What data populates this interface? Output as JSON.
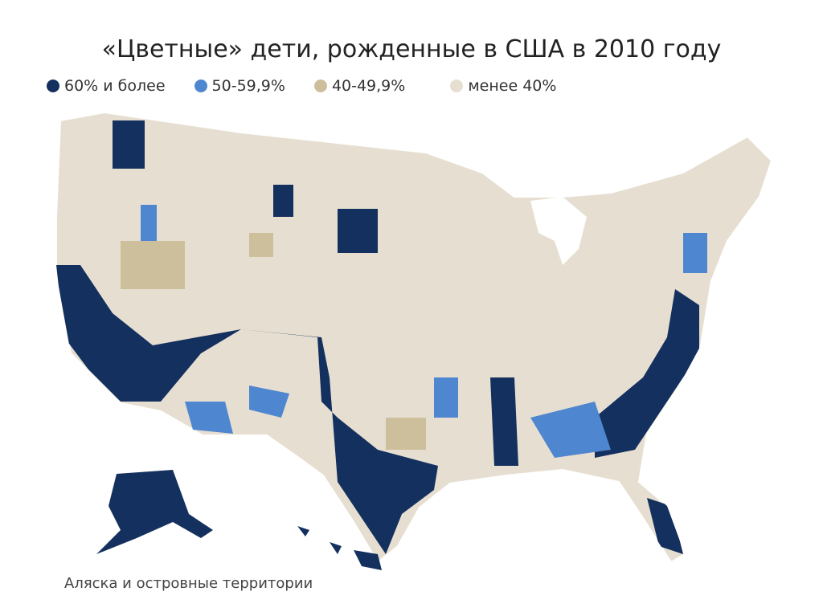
{
  "title": "«Цветные» дети, рожденные в США в 2010 году",
  "legend": [
    {
      "label": "60% и более",
      "color": "#14305e"
    },
    {
      "label": "50-59,9%",
      "color": "#4f86d0"
    },
    {
      "label": "40-49,9%",
      "color": "#cdbf9c"
    },
    {
      "label": "менее 40%",
      "color": "#e6dfd1"
    }
  ],
  "caption": "Аляска и островные территории"
}
